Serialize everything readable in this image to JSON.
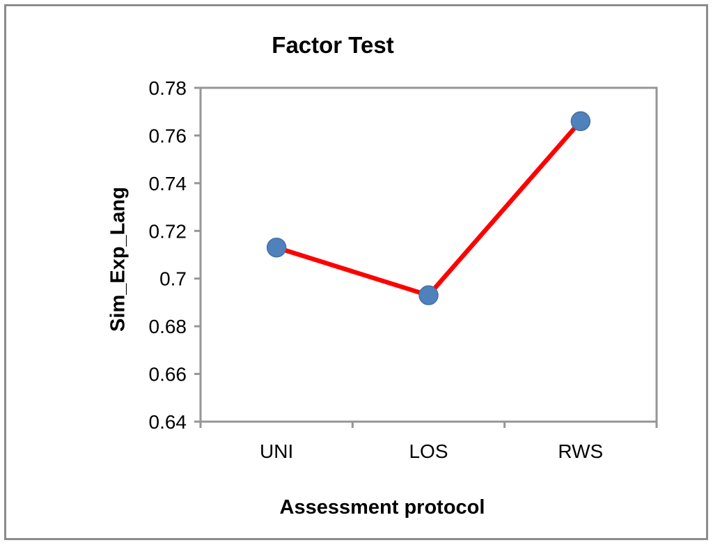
{
  "chart_data": {
    "type": "line",
    "title": "Factor Test",
    "xlabel": "Assessment protocol",
    "ylabel": "Sim_Exp_Lang",
    "categories": [
      "UNI",
      "LOS",
      "RWS"
    ],
    "series": [
      {
        "name": "Sim_Exp_Lang",
        "values": [
          0.713,
          0.693,
          0.766
        ]
      }
    ],
    "ylim": [
      0.64,
      0.78
    ],
    "ytick_step": 0.02,
    "ytick_labels": [
      "0.78",
      "0.76",
      "0.74",
      "0.72",
      "0.7",
      "0.68",
      "0.66",
      "0.64"
    ],
    "grid": false,
    "legend_position": "none",
    "line_color": "#ff0000",
    "marker_color": "#4f81bd",
    "marker_stroke_color": "#44719f",
    "axis_color": "#969696",
    "text_color": "#000000",
    "frame_color": "#8c8c8c"
  }
}
